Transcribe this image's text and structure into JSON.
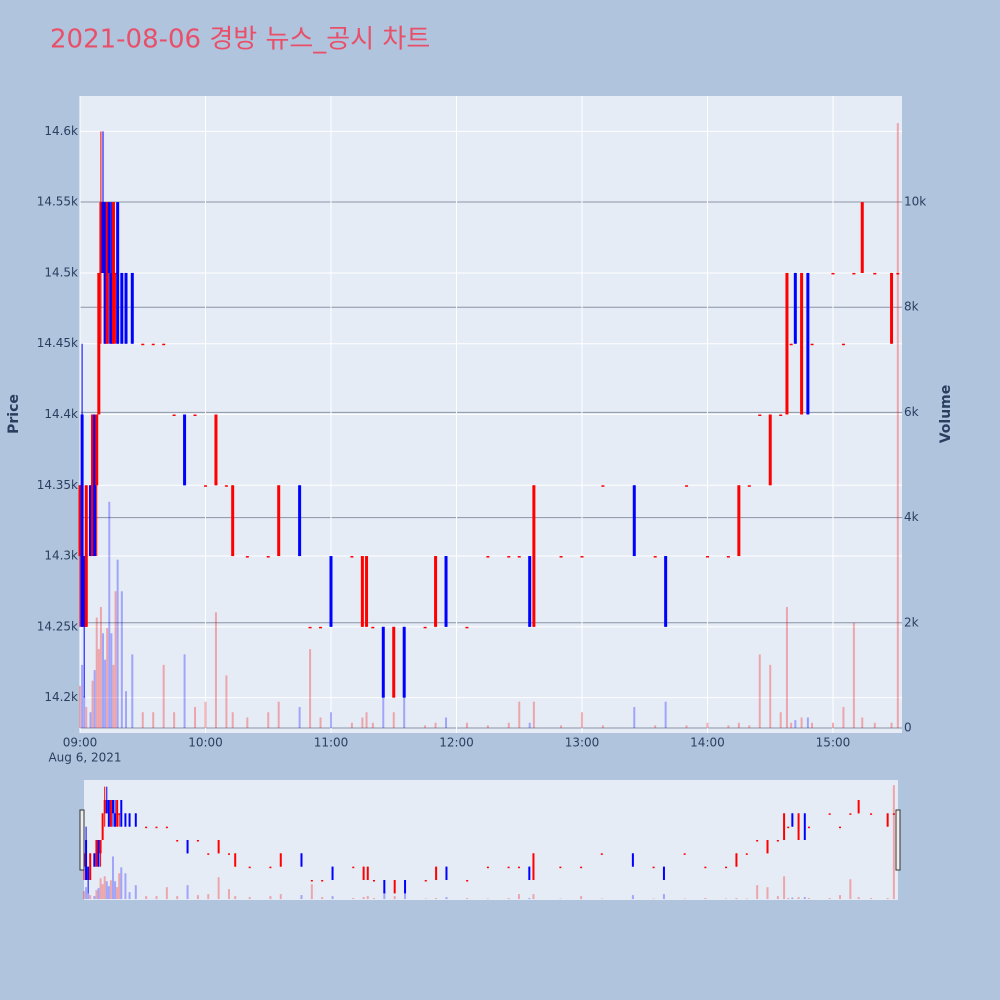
{
  "chart_data": {
    "type": "candlestick",
    "title": "2021-08-06 경방 뉴스_공시 차트",
    "ylabel": "Price",
    "y2label": "Volume",
    "x_date_label": "Aug 6, 2021",
    "increasing_color": "#ff0000",
    "decreasing_color": "#0000ff",
    "xlim": [
      "09:00",
      "15:33"
    ],
    "xticks": [
      "09:00",
      "10:00",
      "11:00",
      "12:00",
      "13:00",
      "14:00",
      "15:00"
    ],
    "ylim": [
      14175,
      14625
    ],
    "yticks": [
      {
        "value": 14200,
        "label": "14.2k"
      },
      {
        "value": 14250,
        "label": "14.25k"
      },
      {
        "value": 14300,
        "label": "14.3k"
      },
      {
        "value": 14350,
        "label": "14.35k"
      },
      {
        "value": 14400,
        "label": "14.4k"
      },
      {
        "value": 14450,
        "label": "14.45k"
      },
      {
        "value": 14500,
        "label": "14.5k"
      },
      {
        "value": 14550,
        "label": "14.55k"
      },
      {
        "value": 14600,
        "label": "14.6k"
      }
    ],
    "y2lim": [
      -95,
      12015
    ],
    "y2ticks": [
      0,
      {
        "value": 2000,
        "label": "2k"
      },
      {
        "value": 4000,
        "label": "4k"
      },
      {
        "value": 6000,
        "label": "6k"
      },
      {
        "value": 8000,
        "label": "8k"
      },
      {
        "value": 10000,
        "label": "10k"
      }
    ],
    "rangeslider": true,
    "x": [
      "09:00",
      "09:01",
      "09:02",
      "09:03",
      "09:05",
      "09:06",
      "09:07",
      "09:08",
      "09:09",
      "09:10",
      "09:11",
      "09:12",
      "09:13",
      "09:14",
      "09:15",
      "09:16",
      "09:17",
      "09:18",
      "09:20",
      "09:22",
      "09:25",
      "09:30",
      "09:35",
      "09:40",
      "09:45",
      "09:50",
      "09:55",
      "10:00",
      "10:05",
      "10:10",
      "10:13",
      "10:20",
      "10:30",
      "10:35",
      "10:45",
      "10:50",
      "10:55",
      "11:00",
      "11:10",
      "11:15",
      "11:17",
      "11:20",
      "11:25",
      "11:30",
      "11:35",
      "11:45",
      "11:50",
      "11:55",
      "12:05",
      "12:15",
      "12:25",
      "12:30",
      "12:35",
      "12:37",
      "12:50",
      "13:00",
      "13:10",
      "13:25",
      "13:35",
      "13:40",
      "13:50",
      "14:00",
      "14:10",
      "14:15",
      "14:20",
      "14:25",
      "14:30",
      "14:35",
      "14:38",
      "14:40",
      "14:42",
      "14:45",
      "14:48",
      "14:50",
      "15:00",
      "15:05",
      "15:10",
      "15:14",
      "15:20",
      "15:28",
      "15:31"
    ],
    "open": [
      14300,
      14400,
      14300,
      14250,
      14350,
      14300,
      14400,
      14350,
      14400,
      14500,
      14550,
      14550,
      14450,
      14550,
      14500,
      14450,
      14500,
      14550,
      14500,
      14500,
      14500,
      14450,
      14450,
      14450,
      14400,
      14400,
      14400,
      14350,
      14350,
      14350,
      14300,
      14300,
      14300,
      14300,
      14350,
      14250,
      14250,
      14300,
      14300,
      14250,
      14250,
      14250,
      14250,
      14200,
      14250,
      14250,
      14250,
      14300,
      14250,
      14300,
      14300,
      14300,
      14300,
      14250,
      14300,
      14300,
      14350,
      14350,
      14300,
      14300,
      14350,
      14300,
      14300,
      14300,
      14350,
      14400,
      14350,
      14400,
      14400,
      14450,
      14500,
      14400,
      14500,
      14450,
      14500,
      14450,
      14500,
      14500,
      14500,
      14450,
      14500
    ],
    "high": [
      14350,
      14450,
      14300,
      14350,
      14350,
      14400,
      14400,
      14400,
      14500,
      14600,
      14600,
      14550,
      14550,
      14550,
      14550,
      14550,
      14500,
      14550,
      14500,
      14500,
      14500,
      14450,
      14450,
      14450,
      14400,
      14400,
      14400,
      14350,
      14400,
      14350,
      14350,
      14300,
      14300,
      14350,
      14350,
      14250,
      14250,
      14300,
      14300,
      14300,
      14300,
      14250,
      14250,
      14250,
      14250,
      14250,
      14300,
      14300,
      14250,
      14300,
      14300,
      14300,
      14300,
      14350,
      14300,
      14300,
      14350,
      14350,
      14300,
      14300,
      14350,
      14300,
      14300,
      14350,
      14350,
      14400,
      14400,
      14400,
      14500,
      14450,
      14500,
      14500,
      14500,
      14450,
      14500,
      14450,
      14500,
      14550,
      14500,
      14500,
      14500
    ],
    "low": [
      14250,
      14250,
      14200,
      14250,
      14300,
      14300,
      14300,
      14300,
      14400,
      14450,
      14500,
      14450,
      14450,
      14450,
      14450,
      14450,
      14450,
      14450,
      14450,
      14450,
      14450,
      14450,
      14450,
      14450,
      14400,
      14350,
      14400,
      14350,
      14350,
      14350,
      14300,
      14300,
      14300,
      14300,
      14300,
      14250,
      14250,
      14250,
      14300,
      14250,
      14250,
      14250,
      14200,
      14200,
      14200,
      14250,
      14250,
      14250,
      14250,
      14300,
      14300,
      14300,
      14250,
      14250,
      14300,
      14300,
      14350,
      14300,
      14300,
      14250,
      14350,
      14300,
      14300,
      14300,
      14350,
      14400,
      14350,
      14400,
      14400,
      14450,
      14450,
      14400,
      14400,
      14450,
      14500,
      14450,
      14500,
      14500,
      14500,
      14450,
      14500
    ],
    "close": [
      14350,
      14250,
      14250,
      14350,
      14300,
      14400,
      14300,
      14400,
      14500,
      14550,
      14500,
      14450,
      14550,
      14500,
      14450,
      14550,
      14500,
      14450,
      14450,
      14450,
      14450,
      14450,
      14450,
      14450,
      14400,
      14350,
      14400,
      14350,
      14400,
      14350,
      14350,
      14300,
      14300,
      14350,
      14300,
      14250,
      14250,
      14250,
      14300,
      14300,
      14300,
      14250,
      14200,
      14250,
      14200,
      14250,
      14300,
      14250,
      14250,
      14300,
      14300,
      14300,
      14250,
      14350,
      14300,
      14300,
      14350,
      14300,
      14300,
      14250,
      14350,
      14300,
      14300,
      14350,
      14350,
      14400,
      14400,
      14400,
      14500,
      14450,
      14450,
      14500,
      14400,
      14450,
      14500,
      14450,
      14500,
      14550,
      14500,
      14500,
      14500
    ],
    "volume": [
      800,
      1200,
      600,
      400,
      300,
      900,
      1100,
      2100,
      1500,
      2300,
      1800,
      1300,
      1900,
      4300,
      1800,
      1200,
      2600,
      3200,
      2600,
      700,
      1400,
      300,
      300,
      1200,
      300,
      1400,
      400,
      500,
      2200,
      1000,
      300,
      200,
      300,
      500,
      400,
      1500,
      200,
      300,
      100,
      200,
      300,
      100,
      800,
      300,
      600,
      50,
      100,
      200,
      100,
      50,
      100,
      500,
      100,
      500,
      50,
      300,
      50,
      400,
      50,
      500,
      50,
      100,
      50,
      100,
      50,
      1400,
      1200,
      300,
      2300,
      100,
      150,
      200,
      200,
      100,
      100,
      400,
      2000,
      200,
      100,
      100,
      11500
    ]
  }
}
